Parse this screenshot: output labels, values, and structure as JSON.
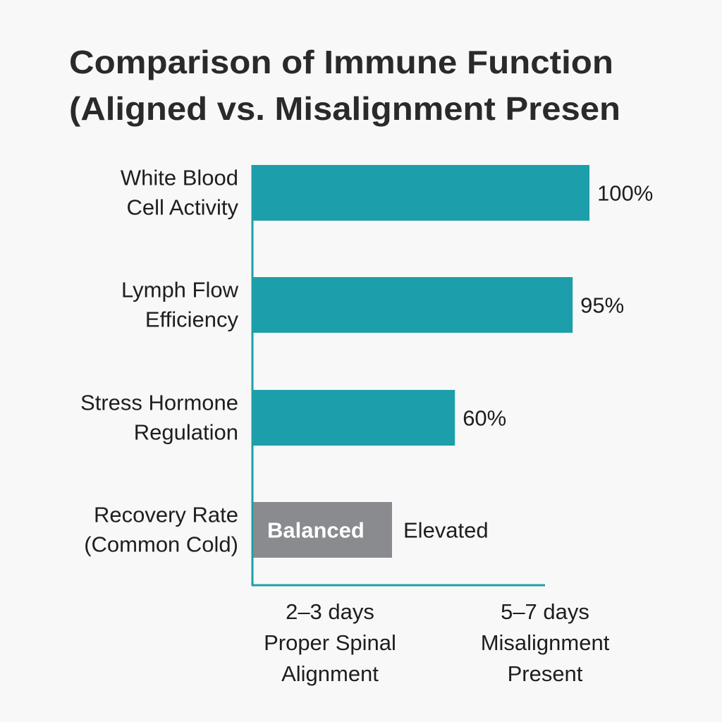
{
  "chart_data": {
    "type": "bar",
    "orientation": "horizontal",
    "title": [
      "Comparison of Immune Function",
      "(Aligned vs. Misalignment Presen"
    ],
    "categories": [
      [
        "White Blood",
        "Cell Activity"
      ],
      [
        "Lymph Flow",
        "Efficiency"
      ],
      [
        "Stress Hormone",
        "Regulation"
      ],
      [
        "Recovery Rate",
        "(Common Cold)"
      ]
    ],
    "values": [
      100,
      95,
      60,
      null
    ],
    "value_labels": [
      "100%",
      "95%",
      "60%",
      "Elevated"
    ],
    "recovery_bar_label": "Balanced",
    "x_tick_labels": [
      [
        "2–3 days",
        "Proper Spinal",
        "Alignment"
      ],
      [
        "5–7 days",
        "Misalignment",
        "Present"
      ]
    ],
    "xlim": [
      0,
      100
    ],
    "grid": false,
    "colors": {
      "bar": "#1c9faa",
      "recovery_bar": "#8a8b8e",
      "axis": "#1c9faa",
      "text": "#1e1e1e",
      "background": "#f8f8f8"
    }
  }
}
